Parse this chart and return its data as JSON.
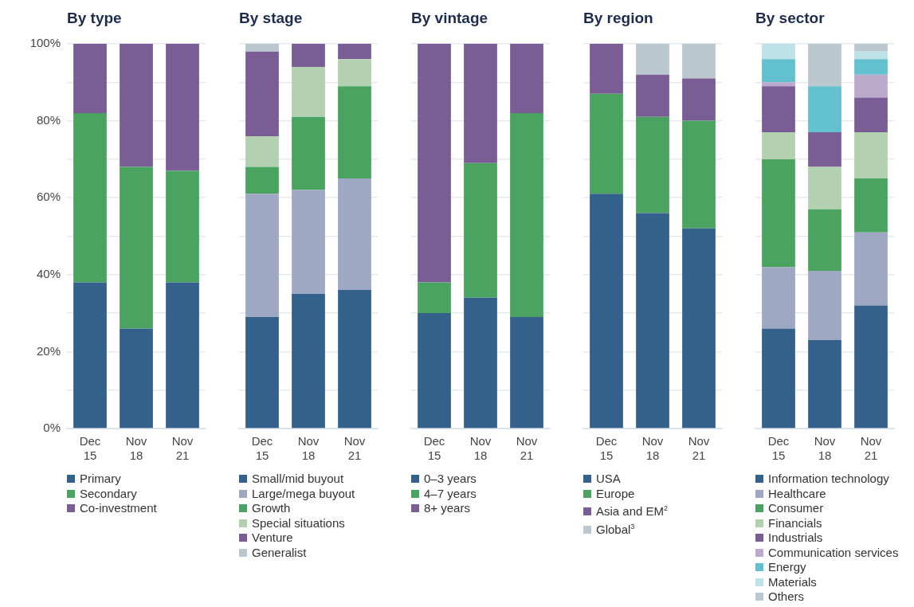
{
  "chart_data": [
    {
      "type": "bar",
      "title": "By type",
      "stacked": true,
      "categories": [
        "Dec 15",
        "Nov 18",
        "Nov 21"
      ],
      "ylim": [
        0,
        100
      ],
      "yticks": [
        {
          "value": 0,
          "label": "0%"
        },
        {
          "value": 10,
          "label": null
        },
        {
          "value": 20,
          "label": "20%"
        },
        {
          "value": 30,
          "label": null
        },
        {
          "value": 40,
          "label": "40%"
        },
        {
          "value": 50,
          "label": null
        },
        {
          "value": 60,
          "label": "60%"
        },
        {
          "value": 70,
          "label": null
        },
        {
          "value": 80,
          "label": "80%"
        },
        {
          "value": 90,
          "label": null
        },
        {
          "value": 100,
          "label": "100%"
        }
      ],
      "grid": "y",
      "legend": "bottom",
      "series": [
        {
          "name": "Primary",
          "color": "#34618b",
          "values": [
            38,
            26,
            38
          ]
        },
        {
          "name": "Secondary",
          "color": "#4aa360",
          "values": [
            44,
            42,
            29
          ]
        },
        {
          "name": "Co-investment",
          "color": "#7b5d96",
          "values": [
            18,
            32,
            33
          ]
        }
      ]
    },
    {
      "type": "bar",
      "title": "By stage",
      "stacked": true,
      "categories": [
        "Dec 15",
        "Nov 18",
        "Nov 21"
      ],
      "ylim": [
        0,
        100
      ],
      "yticks": [
        {
          "value": 0,
          "label": null
        },
        {
          "value": 10,
          "label": null
        },
        {
          "value": 20,
          "label": null
        },
        {
          "value": 30,
          "label": null
        },
        {
          "value": 40,
          "label": null
        },
        {
          "value": 50,
          "label": null
        },
        {
          "value": 60,
          "label": null
        },
        {
          "value": 70,
          "label": null
        },
        {
          "value": 80,
          "label": null
        },
        {
          "value": 90,
          "label": null
        },
        {
          "value": 100,
          "label": null
        }
      ],
      "tick_labels": "x",
      "grid": "y",
      "legend": "bottom",
      "series": [
        {
          "name": "Small/mid buyout",
          "color": "#34618b",
          "values": [
            29,
            35,
            36
          ]
        },
        {
          "name": "Large/mega buyout",
          "color": "#9fa8c2",
          "values": [
            32,
            27,
            29
          ]
        },
        {
          "name": "Growth",
          "color": "#4aa360",
          "values": [
            7,
            19,
            24
          ]
        },
        {
          "name": "Special situations",
          "color": "#b3d0b0",
          "values": [
            8,
            13,
            7
          ]
        },
        {
          "name": "Venture",
          "color": "#7b5d96",
          "values": [
            22,
            6,
            4
          ]
        },
        {
          "name": "Generalist",
          "color": "#bbc8cf",
          "values": [
            2,
            0,
            0
          ]
        }
      ]
    },
    {
      "type": "bar",
      "title": "By vintage",
      "stacked": true,
      "categories": [
        "Dec 15",
        "Nov 18",
        "Nov 21"
      ],
      "ylim": [
        0,
        100
      ],
      "yticks": [
        {
          "value": 0,
          "label": null
        },
        {
          "value": 10,
          "label": null
        },
        {
          "value": 20,
          "label": null
        },
        {
          "value": 30,
          "label": null
        },
        {
          "value": 40,
          "label": null
        },
        {
          "value": 50,
          "label": null
        },
        {
          "value": 60,
          "label": null
        },
        {
          "value": 70,
          "label": null
        },
        {
          "value": 80,
          "label": null
        },
        {
          "value": 90,
          "label": null
        },
        {
          "value": 100,
          "label": null
        }
      ],
      "tick_labels": "x",
      "grid": "y",
      "legend": "bottom",
      "series": [
        {
          "name": "0–3 years",
          "color": "#34618b",
          "values": [
            30,
            34,
            29
          ]
        },
        {
          "name": "4–7 years",
          "color": "#4aa360",
          "values": [
            8,
            35,
            53
          ]
        },
        {
          "name": "8+ years",
          "color": "#7b5d96",
          "values": [
            62,
            31,
            18
          ]
        }
      ]
    },
    {
      "type": "bar",
      "title": "By region",
      "stacked": true,
      "categories": [
        "Dec 15",
        "Nov 18",
        "Nov 21"
      ],
      "ylim": [
        0,
        100
      ],
      "yticks": [
        {
          "value": 0,
          "label": null
        },
        {
          "value": 10,
          "label": null
        },
        {
          "value": 20,
          "label": null
        },
        {
          "value": 30,
          "label": null
        },
        {
          "value": 40,
          "label": null
        },
        {
          "value": 50,
          "label": null
        },
        {
          "value": 60,
          "label": null
        },
        {
          "value": 70,
          "label": null
        },
        {
          "value": 80,
          "label": null
        },
        {
          "value": 90,
          "label": null
        },
        {
          "value": 100,
          "label": null
        }
      ],
      "tick_labels": "x",
      "grid": "y",
      "legend": "bottom",
      "series": [
        {
          "name": "USA",
          "color": "#34618b",
          "values": [
            61,
            56,
            52
          ]
        },
        {
          "name": "Europe",
          "color": "#4aa360",
          "values": [
            26,
            25,
            28
          ]
        },
        {
          "name": "Asia and EM$^{2}$",
          "color": "#7b5d96",
          "values": [
            13,
            11,
            11
          ]
        },
        {
          "name": "Global$^{3}$",
          "color": "#bbc8cf",
          "values": [
            0,
            8,
            9
          ]
        }
      ]
    },
    {
      "type": "bar",
      "title": "By sector",
      "stacked": true,
      "categories": [
        "Dec 15",
        "Nov 18",
        "Nov 21"
      ],
      "ylim": [
        0,
        100
      ],
      "yticks": [
        {
          "value": 0,
          "label": null
        },
        {
          "value": 10,
          "label": null
        },
        {
          "value": 20,
          "label": null
        },
        {
          "value": 30,
          "label": null
        },
        {
          "value": 40,
          "label": null
        },
        {
          "value": 50,
          "label": null
        },
        {
          "value": 60,
          "label": null
        },
        {
          "value": 70,
          "label": null
        },
        {
          "value": 80,
          "label": null
        },
        {
          "value": 90,
          "label": null
        },
        {
          "value": 100,
          "label": null
        }
      ],
      "tick_labels": "x",
      "grid": "y",
      "legend": "bottom",
      "series": [
        {
          "name": "Information technology",
          "color": "#34618b",
          "values": [
            26,
            23,
            32
          ]
        },
        {
          "name": "Healthcare",
          "color": "#9fa8c2",
          "values": [
            16,
            18,
            19
          ]
        },
        {
          "name": "Consumer",
          "color": "#4aa360",
          "values": [
            28,
            16,
            14
          ]
        },
        {
          "name": "Financials",
          "color": "#b3d0b0",
          "values": [
            7,
            11,
            12
          ]
        },
        {
          "name": "Industrials",
          "color": "#7b5d96",
          "values": [
            12,
            9,
            9
          ]
        },
        {
          "name": "Communication services",
          "color": "#bbaacc",
          "values": [
            1,
            0,
            6
          ]
        },
        {
          "name": "Energy",
          "color": "#63c0cf",
          "values": [
            6,
            12,
            4
          ]
        },
        {
          "name": "Materials",
          "color": "#bee2e8",
          "values": [
            4,
            0,
            2
          ]
        },
        {
          "name": "Others",
          "color": "#bbc8cf",
          "values": [
            0,
            11,
            2
          ]
        }
      ]
    }
  ]
}
